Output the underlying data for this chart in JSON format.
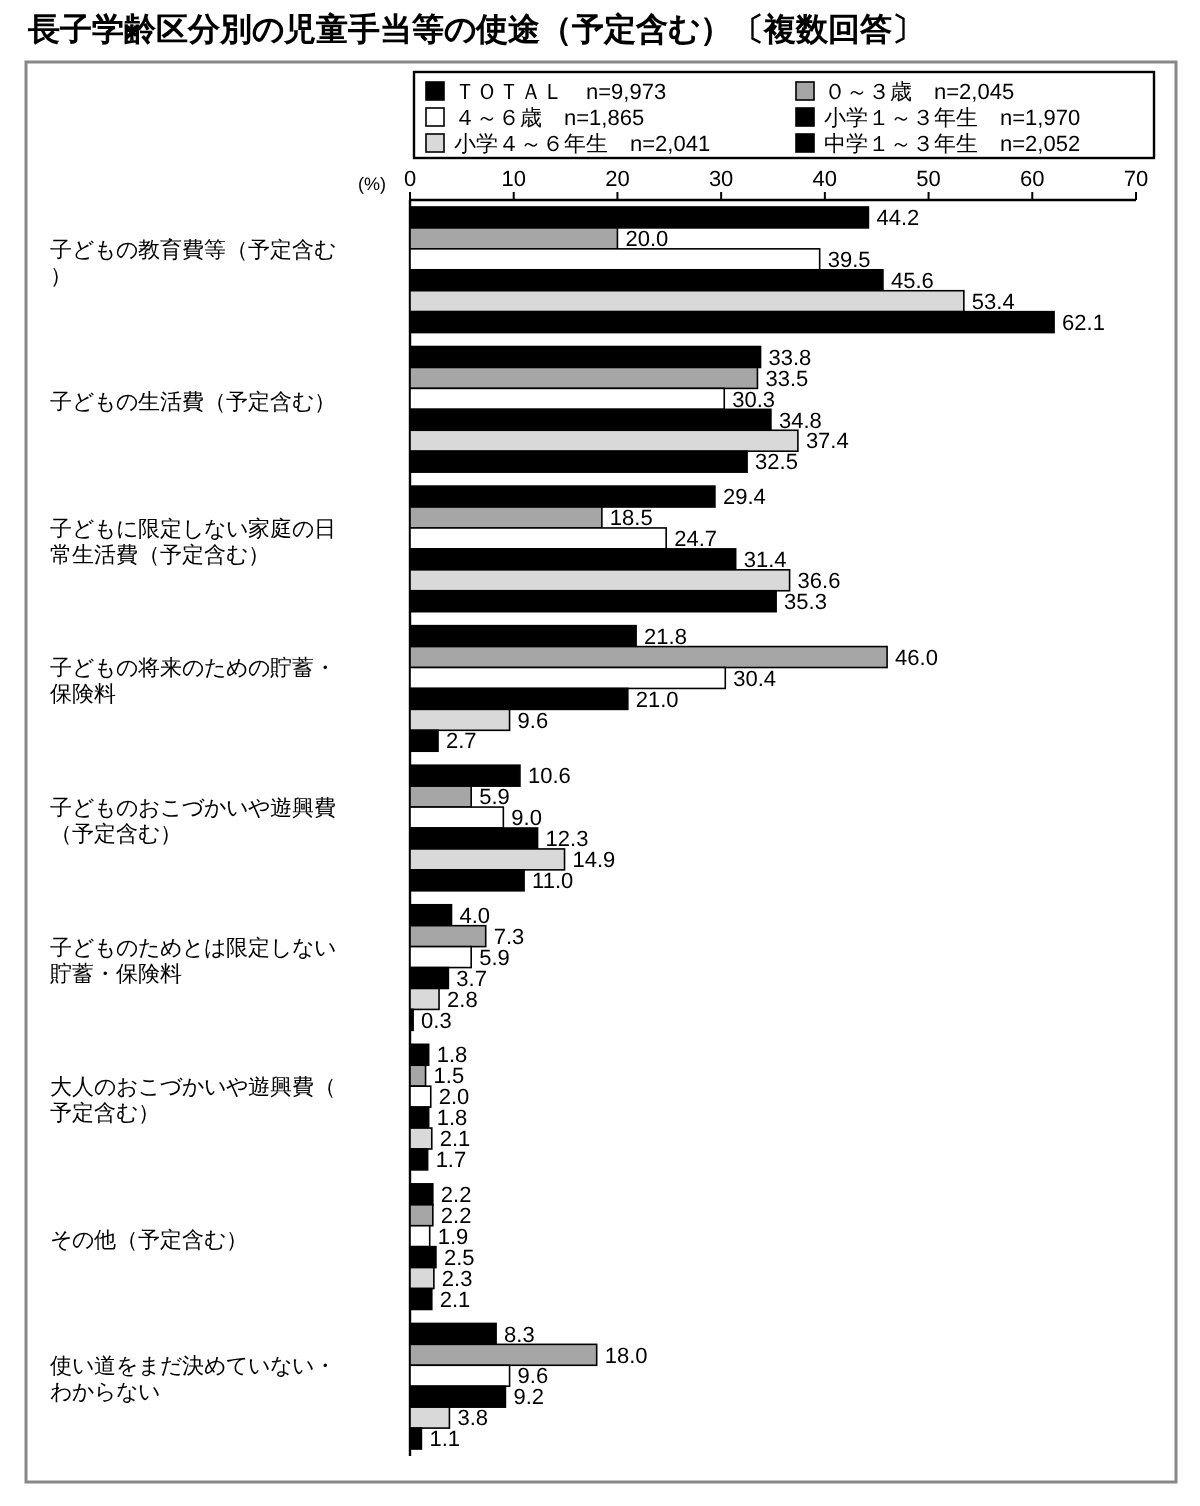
{
  "chart_data": {
    "type": "bar",
    "orientation": "horizontal",
    "title": "長子学齢区分別の児童手当等の使途（予定含む）〔複数回答〕",
    "xlabel": "(%)",
    "categories": [
      "子どもの教育費等（予定含む）",
      "子どもの生活費（予定含む）",
      "子どもに限定しない家庭の日常生活費（予定含む）",
      "子どもの将来のための貯蓄・保険料",
      "子どものおこづかいや遊興費（予定含む）",
      "子どものためとは限定しない貯蓄・保険料",
      "大人のおこづかいや遊興費（予定含む）",
      "その他（予定含む）",
      "使い道をまだ決めていない・わからない"
    ],
    "series": [
      {
        "name": "ＴＯＴＡＬ　n=9,973",
        "color": "#000000",
        "values": [
          44.2,
          33.8,
          29.4,
          21.8,
          10.6,
          4.0,
          1.8,
          2.2,
          8.3
        ],
        "value_labels": [
          "44.2",
          "33.8",
          "29.4",
          "21.8",
          "10.6",
          "4.0",
          "1.8",
          "2.2",
          "8.3"
        ]
      },
      {
        "name": "０～３歳　n=2,045",
        "color": "#a6a6a6",
        "values": [
          20.0,
          33.5,
          18.5,
          46.0,
          5.9,
          7.3,
          1.5,
          2.2,
          18.0
        ],
        "value_labels": [
          "20.0",
          "33.5",
          "18.5",
          "46.0",
          "5.9",
          "7.3",
          "1.5",
          "2.2",
          "18.0"
        ]
      },
      {
        "name": "４～６歳　n=1,865",
        "color": "#ffffff",
        "values": [
          39.5,
          30.3,
          24.7,
          30.4,
          9.0,
          5.9,
          2.0,
          1.9,
          9.6
        ],
        "value_labels": [
          "39.5",
          "30.3",
          "24.7",
          "30.4",
          "9.0",
          "5.9",
          "2.0",
          "1.9",
          "9.6"
        ]
      },
      {
        "name": "小学１～３年生　n=1,970",
        "color": "#000000",
        "values": [
          45.6,
          34.8,
          31.4,
          21.0,
          12.3,
          3.7,
          1.8,
          2.5,
          9.2
        ],
        "value_labels": [
          "45.6",
          "34.8",
          "31.4",
          "21.0",
          "12.3",
          "3.7",
          "1.8",
          "2.5",
          "9.2"
        ]
      },
      {
        "name": "小学４～６年生　n=2,041",
        "color": "#d9d9d9",
        "values": [
          53.4,
          37.4,
          36.6,
          9.6,
          14.9,
          2.8,
          2.1,
          2.3,
          3.8
        ],
        "value_labels": [
          "53.4",
          "37.4",
          "36.6",
          "9.6",
          "14.9",
          "2.8",
          "2.1",
          "2.3",
          "3.8"
        ]
      },
      {
        "name": "中学１～３年生　n=2,052",
        "color": "#000000",
        "values": [
          62.1,
          32.5,
          35.3,
          2.7,
          11.0,
          0.3,
          1.7,
          2.1,
          1.1
        ],
        "value_labels": [
          "62.1",
          "32.5",
          "35.3",
          "2.7",
          "11.0",
          "0.3",
          "1.7",
          "2.1",
          "1.1"
        ]
      }
    ],
    "xlim": [
      0,
      70
    ],
    "xticks": [
      0,
      10,
      20,
      30,
      40,
      50,
      60,
      70
    ],
    "legend": "top"
  }
}
